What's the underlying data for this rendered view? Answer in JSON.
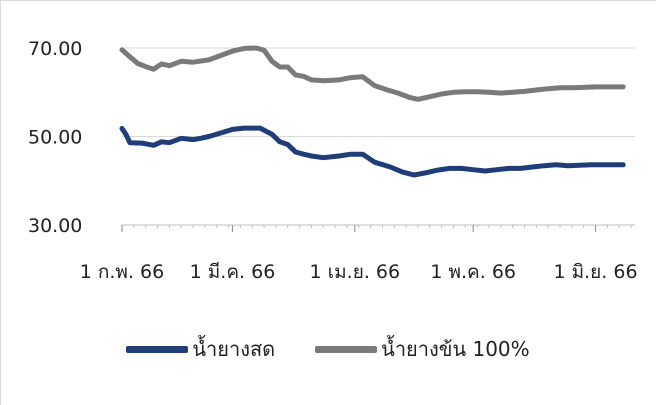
{
  "chart_data": {
    "type": "line",
    "title": "",
    "xlabel": "",
    "ylabel": "",
    "ylim": [
      30,
      70
    ],
    "yticks": [
      "70.00",
      "50.00",
      "30.00"
    ],
    "ytick_values": [
      70,
      50,
      30
    ],
    "xlim": [
      0,
      130
    ],
    "xticks": [
      "1 ก.พ. 66",
      "1 มี.ค. 66",
      "1 เม.ย. 66",
      "1 พ.ค. 66",
      "1 มิ.ย. 66"
    ],
    "xtick_values": [
      0,
      28,
      59,
      89,
      120
    ],
    "grid": true,
    "legend_position": "bottom",
    "series": [
      {
        "name": "น้ำยางสด",
        "color": "#1f3d78",
        "x": [
          0,
          1,
          2,
          5,
          8,
          10,
          12,
          15,
          18,
          20,
          22,
          25,
          28,
          31,
          35,
          38,
          40,
          42,
          44,
          46,
          48,
          51,
          55,
          58,
          61,
          64,
          68,
          71,
          74,
          77,
          80,
          83,
          86,
          89,
          92,
          95,
          98,
          101,
          104,
          107,
          110,
          113,
          116,
          119,
          122,
          125,
          127
        ],
        "values": [
          51.8,
          50.5,
          48.6,
          48.5,
          48.0,
          48.8,
          48.6,
          49.6,
          49.3,
          49.6,
          50.0,
          50.8,
          51.6,
          51.9,
          51.9,
          50.5,
          48.8,
          48.2,
          46.5,
          46.0,
          45.6,
          45.2,
          45.6,
          46.0,
          46.0,
          44.2,
          43.1,
          42.0,
          41.3,
          41.8,
          42.4,
          42.8,
          42.8,
          42.5,
          42.2,
          42.5,
          42.8,
          42.8,
          43.1,
          43.4,
          43.6,
          43.4,
          43.5,
          43.6,
          43.6,
          43.6,
          43.6
        ]
      },
      {
        "name": "น้ำยางข้น 100%",
        "color": "#7a7a7a",
        "x": [
          0,
          2,
          4,
          6,
          8,
          10,
          12,
          15,
          18,
          22,
          25,
          28,
          31,
          34,
          36,
          38,
          40,
          42,
          44,
          46,
          48,
          51,
          55,
          58,
          61,
          64,
          67,
          70,
          73,
          75,
          78,
          81,
          84,
          87,
          90,
          93,
          96,
          99,
          102,
          105,
          108,
          111,
          114,
          117,
          120,
          123,
          127
        ],
        "values": [
          69.6,
          68.0,
          66.5,
          65.8,
          65.2,
          66.4,
          66.0,
          67.0,
          66.8,
          67.3,
          68.3,
          69.3,
          69.9,
          70.0,
          69.5,
          67.0,
          65.7,
          65.7,
          63.9,
          63.6,
          62.8,
          62.6,
          62.8,
          63.3,
          63.5,
          61.5,
          60.6,
          59.8,
          58.8,
          58.4,
          59.0,
          59.6,
          60.0,
          60.1,
          60.1,
          60.0,
          59.8,
          60.0,
          60.2,
          60.5,
          60.8,
          61.0,
          61.0,
          61.1,
          61.2,
          61.2,
          61.2
        ]
      }
    ]
  }
}
